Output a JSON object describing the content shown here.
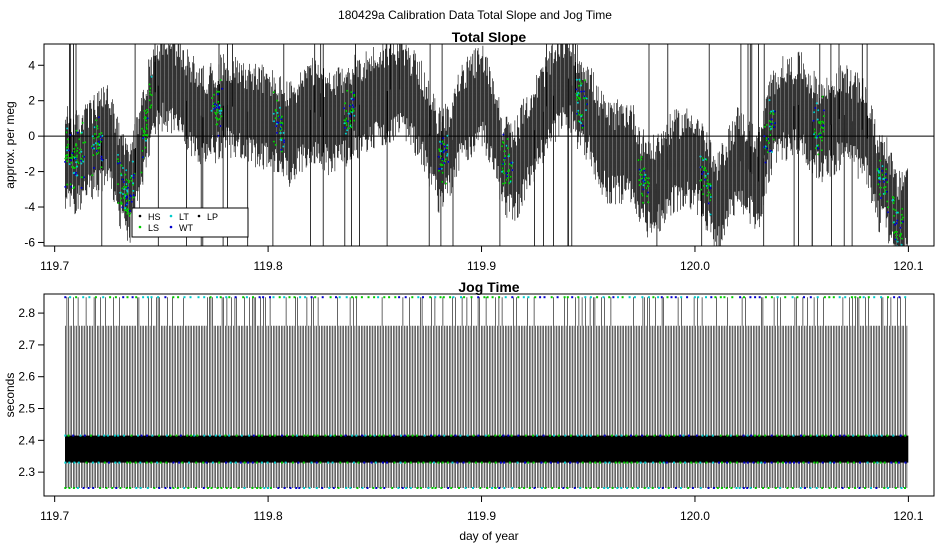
{
  "figure": {
    "title": "180429a   Calibration Data Total Slope and Jog Time"
  },
  "chart_data": [
    {
      "type": "scatter",
      "title": "Total Slope",
      "xlabel": "",
      "ylabel": "approx. per meg",
      "xlim": [
        119.695,
        120.112
      ],
      "ylim": [
        -6.2,
        5.2
      ],
      "xticks": [
        119.7,
        119.8,
        119.9,
        120.0,
        120.1
      ],
      "xtick_labels": [
        "119.7",
        "119.8",
        "119.9",
        "120.0",
        "120.1"
      ],
      "yticks": [
        -6,
        -4,
        -2,
        0,
        2,
        4
      ],
      "ytick_labels": [
        "-6",
        "-4",
        "-2",
        "0",
        "2",
        "4"
      ],
      "reference_line_y": 0,
      "x_range_data": [
        119.705,
        120.1
      ],
      "series": [
        {
          "name": "HS",
          "color": "#000000"
        },
        {
          "name": "LS",
          "color": "#00cc00"
        },
        {
          "name": "LT",
          "color": "#00cccc"
        },
        {
          "name": "WT",
          "color": "#0000cc"
        },
        {
          "name": "LP",
          "color": "#000000"
        }
      ],
      "trend": {
        "x": [
          119.705,
          119.71,
          119.715,
          119.72,
          119.725,
          119.73,
          119.735,
          119.74,
          119.745,
          119.75,
          119.755,
          119.76,
          119.77,
          119.78,
          119.79,
          119.8,
          119.81,
          119.82,
          119.83,
          119.84,
          119.85,
          119.86,
          119.87,
          119.875,
          119.88,
          119.885,
          119.89,
          119.9,
          119.905,
          119.91,
          119.915,
          119.92,
          119.93,
          119.94,
          119.945,
          119.95,
          119.955,
          119.96,
          119.97,
          119.975,
          119.98,
          119.99,
          120.0,
          120.005,
          120.01,
          120.015,
          120.02,
          120.03,
          120.035,
          120.04,
          120.05,
          120.055,
          120.06,
          120.07,
          120.08,
          120.085,
          120.09,
          120.095,
          120.1
        ],
        "y": [
          -1.2,
          -1.5,
          -1.0,
          -0.5,
          0.3,
          -2.2,
          -3.3,
          -1.0,
          2.0,
          3.2,
          3.0,
          2.2,
          1.0,
          1.8,
          1.4,
          1.0,
          0.1,
          1.5,
          0.6,
          1.6,
          2.2,
          2.8,
          1.8,
          0.3,
          -1.4,
          -0.8,
          1.0,
          2.4,
          1.0,
          -1.5,
          -2.2,
          -0.8,
          1.6,
          3.4,
          2.2,
          1.5,
          -0.2,
          -1.0,
          -0.8,
          -2.4,
          -3.0,
          -1.5,
          -1.2,
          -2.4,
          -4.2,
          -2.6,
          -1.2,
          -2.6,
          0.5,
          1.5,
          1.8,
          0.8,
          0.3,
          1.2,
          0.2,
          -2.3,
          -2.8,
          -5.2,
          -3.8
        ],
        "noise_amplitude": 2.5
      },
      "legend": {
        "position": "bottom-left",
        "columns": 3,
        "entries": [
          "HS",
          "LT",
          "LP",
          "LS",
          "WT"
        ]
      }
    },
    {
      "type": "scatter",
      "title": "Jog Time",
      "xlabel": "day of year",
      "ylabel": "seconds",
      "xlim": [
        119.695,
        120.112
      ],
      "ylim": [
        2.225,
        2.86
      ],
      "xticks": [
        119.7,
        119.8,
        119.9,
        120.0,
        120.1
      ],
      "xtick_labels": [
        "119.7",
        "119.8",
        "119.9",
        "120.0",
        "120.1"
      ],
      "yticks": [
        2.3,
        2.4,
        2.5,
        2.6,
        2.7,
        2.8
      ],
      "ytick_labels": [
        "2.3",
        "2.4",
        "2.5",
        "2.6",
        "2.7",
        "2.8"
      ],
      "x_range_data": [
        119.705,
        120.1
      ],
      "levels": [
        2.25,
        2.33,
        2.35,
        2.38,
        2.41,
        2.76,
        2.85
      ],
      "dense_band": [
        2.33,
        2.415
      ],
      "outer_band": [
        2.25,
        2.76
      ],
      "series": [
        {
          "name": "HS",
          "color": "#000000"
        },
        {
          "name": "LS",
          "color": "#00cc00"
        },
        {
          "name": "LT",
          "color": "#00cccc"
        },
        {
          "name": "WT",
          "color": "#0000cc"
        },
        {
          "name": "LP",
          "color": "#000000"
        }
      ]
    }
  ]
}
